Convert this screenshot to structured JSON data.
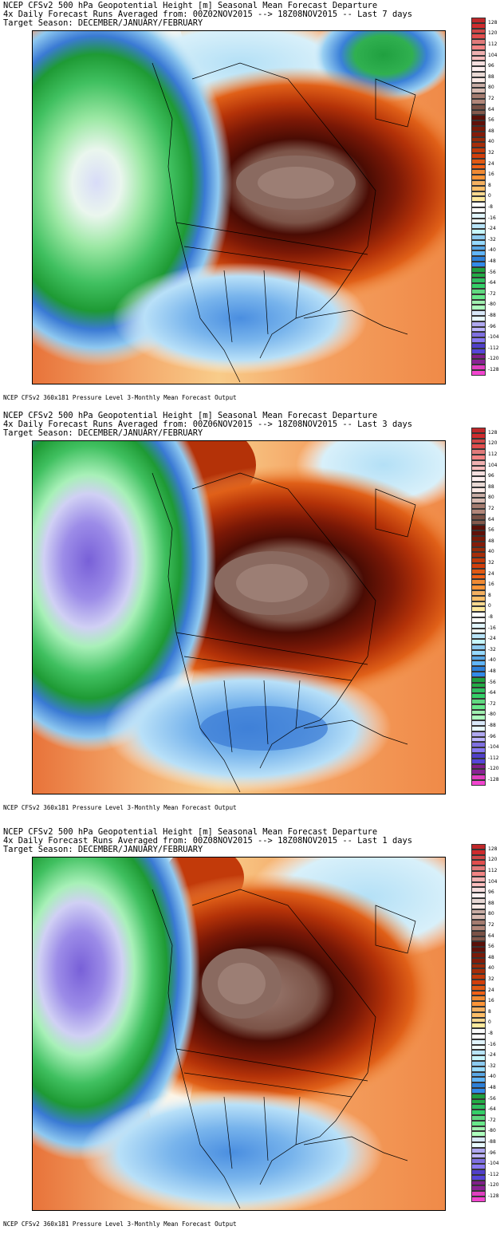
{
  "panels": [
    {
      "title_line1": "NCEP CFSv2 500 hPa Geopotential Height [m] Seasonal Mean Forecast Departure",
      "title_line2": "4x Daily Forecast Runs Averaged from: 00Z02NOV2015 --> 18Z08NOV2015 -- Last 7 days",
      "title_line3": "Target Season: DECEMBER/JANUARY/FEBRUARY",
      "footer": "NCEP CFSv2 360x181 Pressure Level 3-Monthly Mean Forecast Output"
    },
    {
      "title_line1": "NCEP CFSv2 500 hPa Geopotential Height [m] Seasonal Mean Forecast Departure",
      "title_line2": "4x Daily Forecast Runs Averaged from: 00Z06NOV2015 --> 18Z08NOV2015 -- Last 3 days",
      "title_line3": "Target Season: DECEMBER/JANUARY/FEBRUARY",
      "footer": "NCEP CFSv2 360x181 Pressure Level 3-Monthly Mean Forecast Output"
    },
    {
      "title_line1": "NCEP CFSv2 500 hPa Geopotential Height [m] Seasonal Mean Forecast Departure",
      "title_line2": "4x Daily Forecast Runs Averaged from: 00Z08NOV2015 --> 18Z08NOV2015 -- Last 1 days",
      "title_line3": "Target Season: DECEMBER/JANUARY/FEBRUARY",
      "footer": "NCEP CFSv2 360x181 Pressure Level 3-Monthly Mean Forecast Output"
    }
  ],
  "colorbar": {
    "labels": [
      "128",
      "120",
      "112",
      "104",
      "96",
      "88",
      "80",
      "72",
      "64",
      "56",
      "48",
      "40",
      "32",
      "24",
      "16",
      "8",
      "0",
      "-8",
      "-16",
      "-24",
      "-32",
      "-40",
      "-48",
      "-56",
      "-64",
      "-72",
      "-80",
      "-88",
      "-96",
      "-104",
      "-112",
      "-120",
      "-128"
    ],
    "colors": [
      "#c0282a",
      "#d04848",
      "#e07a7a",
      "#f0b0b0",
      "#f6dede",
      "#e8d8d4",
      "#c8aca4",
      "#a47c70",
      "#7a5246",
      "#5a1008",
      "#7a1a08",
      "#9a2a08",
      "#c23a0a",
      "#e05a14",
      "#f08a34",
      "#f4b060",
      "#f8d890",
      "#ffffff",
      "#e0f4fc",
      "#b8e4f8",
      "#8ccaf0",
      "#5aa8e6",
      "#2e80d8",
      "#20a040",
      "#30c060",
      "#60d880",
      "#a0f0b0",
      "#d8e8f8",
      "#b0a8f0",
      "#8070e0",
      "#5040c8",
      "#80208a",
      "#e040c0"
    ]
  }
}
